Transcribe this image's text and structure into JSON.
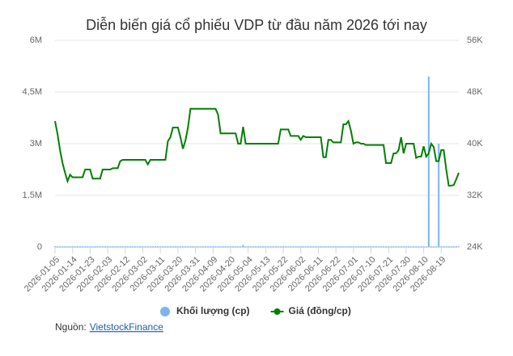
{
  "chart_data": {
    "type": "combo",
    "title": "Diễn biến giá cổ phiếu VDP từ đầu năm 2026 tới nay",
    "categories": [
      "2026-01-05",
      null,
      null,
      null,
      null,
      null,
      null,
      "2026-01-14",
      null,
      null,
      null,
      null,
      null,
      null,
      "2026-01-23",
      null,
      null,
      null,
      null,
      null,
      null,
      "2026-02-03",
      null,
      null,
      null,
      null,
      null,
      null,
      "2026-02-12",
      null,
      null,
      null,
      null,
      null,
      null,
      "2026-03-02",
      null,
      null,
      null,
      null,
      null,
      null,
      "2026-03-11",
      null,
      null,
      null,
      null,
      null,
      null,
      "2026-03-20",
      null,
      null,
      null,
      null,
      null,
      null,
      "2026-03-31",
      null,
      null,
      null,
      null,
      null,
      null,
      "2026-04-09",
      null,
      null,
      null,
      null,
      null,
      null,
      "2026-04-20",
      null,
      null,
      null,
      null,
      null,
      null,
      "2026-05-04",
      null,
      null,
      null,
      null,
      null,
      null,
      "2026-05-13",
      null,
      null,
      null,
      null,
      null,
      null,
      "2026-05-22",
      null,
      null,
      null,
      null,
      null,
      null,
      "2026-06-02",
      null,
      null,
      null,
      null,
      null,
      null,
      "2026-06-11",
      null,
      null,
      null,
      null,
      null,
      null,
      "2026-06-22",
      null,
      null,
      null,
      null,
      null,
      null,
      "2026-07-01",
      null,
      null,
      null,
      null,
      null,
      null,
      "2026-07-10",
      null,
      null,
      null,
      null,
      null,
      null,
      "2026-07-21",
      null,
      null,
      null,
      null,
      null,
      null,
      "2026-07-30",
      null,
      null,
      null,
      null,
      null,
      null,
      "2026-08-10",
      null,
      null,
      null,
      null,
      null,
      null,
      "2026-08-19",
      null,
      null,
      null,
      null,
      null,
      null,
      null
    ],
    "series": [
      {
        "name": "Khối lượng (cp)",
        "type": "bar",
        "axis": "y",
        "color": "#7cb5ec",
        "values": [
          20000,
          20000,
          20000,
          20000,
          20000,
          20000,
          20000,
          20000,
          20000,
          20000,
          20000,
          20000,
          20000,
          20000,
          20000,
          20000,
          20000,
          20000,
          20000,
          20000,
          20000,
          20000,
          20000,
          20000,
          20000,
          20000,
          20000,
          20000,
          20000,
          20000,
          20000,
          20000,
          20000,
          20000,
          20000,
          20000,
          20000,
          20000,
          20000,
          20000,
          20000,
          20000,
          20000,
          20000,
          20000,
          20000,
          20000,
          20000,
          20000,
          20000,
          20000,
          20000,
          20000,
          20000,
          20000,
          20000,
          20000,
          20000,
          20000,
          20000,
          20000,
          20000,
          20000,
          20000,
          20000,
          20000,
          20000,
          20000,
          20000,
          20000,
          20000,
          20000,
          20000,
          20000,
          20000,
          60000,
          20000,
          20000,
          20000,
          20000,
          20000,
          20000,
          20000,
          20000,
          20000,
          20000,
          20000,
          20000,
          20000,
          20000,
          20000,
          20000,
          20000,
          20000,
          20000,
          20000,
          20000,
          20000,
          20000,
          20000,
          20000,
          20000,
          20000,
          20000,
          20000,
          20000,
          20000,
          20000,
          20000,
          20000,
          20000,
          20000,
          20000,
          20000,
          20000,
          20000,
          20000,
          20000,
          20000,
          20000,
          20000,
          20000,
          20000,
          20000,
          20000,
          20000,
          20000,
          20000,
          20000,
          20000,
          20000,
          20000,
          20000,
          20000,
          20000,
          20000,
          20000,
          20000,
          20000,
          20000,
          20000,
          20000,
          20000,
          20000,
          20000,
          20000,
          20000,
          20000,
          20000,
          4950000,
          20000,
          20000,
          20000,
          3000000,
          20000,
          20000,
          20000,
          20000,
          20000,
          20000,
          20000,
          20000
        ]
      },
      {
        "name": "Giá (đồng/cp)",
        "type": "line",
        "axis": "y2",
        "color": "#008000",
        "values": [
          43500,
          41500,
          39000,
          37000,
          35500,
          34200,
          35200,
          34800,
          34800,
          34800,
          34800,
          34800,
          36000,
          36000,
          36000,
          34600,
          34600,
          34600,
          34600,
          36000,
          36000,
          36000,
          36000,
          36200,
          36200,
          36200,
          37300,
          37500,
          37500,
          37500,
          37500,
          37500,
          37500,
          37500,
          37500,
          37500,
          37500,
          36800,
          37500,
          37500,
          37500,
          37500,
          37500,
          37500,
          37500,
          40400,
          41000,
          42500,
          42500,
          42500,
          41000,
          39200,
          40500,
          42500,
          45400,
          45400,
          45400,
          45400,
          45400,
          45400,
          45400,
          45400,
          45400,
          45400,
          45400,
          44500,
          41600,
          41600,
          41600,
          41600,
          41600,
          41600,
          41600,
          40000,
          40000,
          42600,
          40000,
          40000,
          40000,
          40000,
          40000,
          40000,
          40000,
          40000,
          40000,
          40000,
          40000,
          40000,
          40000,
          40000,
          42200,
          42200,
          42200,
          42200,
          41200,
          41200,
          41200,
          41200,
          40600,
          41200,
          41000,
          41000,
          41000,
          41000,
          41000,
          41000,
          41000,
          37900,
          37900,
          40600,
          40600,
          40200,
          40200,
          40200,
          40200,
          43000,
          43000,
          43500,
          42000,
          40000,
          40200,
          40200,
          40000,
          40000,
          39800,
          39800,
          39800,
          39800,
          39800,
          39800,
          39800,
          39800,
          37000,
          37000,
          37000,
          38500,
          38500,
          39000,
          41000,
          38500,
          40000,
          40000,
          40000,
          40000,
          37800,
          38000,
          38000,
          39600,
          38000,
          38500,
          40000,
          39500,
          37300,
          37300,
          39000,
          39000,
          36000,
          33500,
          33500,
          33600,
          34500,
          35500
        ]
      }
    ],
    "ylim": [
      0,
      6000000
    ],
    "yticks": [
      0,
      {
        "value": 1500000,
        "label": "1,5M"
      },
      {
        "value": 3000000,
        "label": "3M"
      },
      {
        "value": 4500000,
        "label": "4,5M"
      },
      {
        "value": 6000000,
        "label": "6M"
      }
    ],
    "y2lim": [
      24000,
      56000
    ],
    "y2ticks": [
      {
        "value": 24000,
        "label": "24K"
      },
      {
        "value": 32000,
        "label": "32K"
      },
      {
        "value": 40000,
        "label": "40K"
      },
      {
        "value": 48000,
        "label": "48K"
      },
      {
        "value": 56000,
        "label": "56K"
      }
    ],
    "grid": true,
    "legend": "bottom"
  },
  "source": {
    "label": "Nguồn:",
    "link": "VietstockFinance"
  }
}
